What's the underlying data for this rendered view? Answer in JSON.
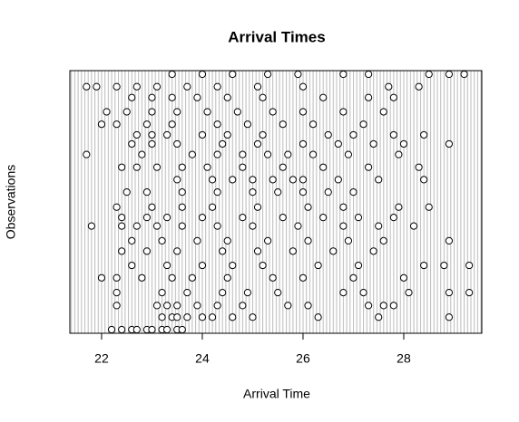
{
  "chart_data": {
    "type": "scatter",
    "title": "Arrival Times",
    "x_label": "Arrival Time",
    "y_label": "Observations",
    "xlim": [
      21.37,
      29.55
    ],
    "ylim": [
      0,
      100
    ],
    "xticks": [
      22,
      24,
      26,
      28
    ],
    "point_color": "#000000",
    "x": [
      22.2,
      22.4,
      22.6,
      22.7,
      22.9,
      23.0,
      23.2,
      23.3,
      23.5,
      23.6,
      23.2,
      23.4,
      23.5,
      23.7,
      24.0,
      24.2,
      24.6,
      25.0,
      26.3,
      27.5,
      28.9,
      22.3,
      23.1,
      23.3,
      23.5,
      23.9,
      24.3,
      24.8,
      25.7,
      26.1,
      27.3,
      27.6,
      27.8,
      22.3,
      23.2,
      23.7,
      24.4,
      24.9,
      25.5,
      26.8,
      27.2,
      28.1,
      28.9,
      29.3,
      22.0,
      22.3,
      22.8,
      23.4,
      23.8,
      24.5,
      25.4,
      26.0,
      27.0,
      28.0,
      22.6,
      23.3,
      24.0,
      24.6,
      25.2,
      26.3,
      27.1,
      28.4,
      28.8,
      29.3,
      22.4,
      22.9,
      23.5,
      24.4,
      25.1,
      25.8,
      26.6,
      27.4,
      22.6,
      23.2,
      23.9,
      24.5,
      25.3,
      26.1,
      26.9,
      27.6,
      28.9,
      21.8,
      22.4,
      22.7,
      23.1,
      23.6,
      24.3,
      25.0,
      25.9,
      26.8,
      27.5,
      28.2,
      22.4,
      22.9,
      23.3,
      24.0,
      24.8,
      25.6,
      26.4,
      27.1,
      27.8,
      22.3,
      23.0,
      23.6,
      24.2,
      25.1,
      26.1,
      26.8,
      27.9,
      28.5,
      22.5,
      22.9,
      23.6,
      24.3,
      25.0,
      25.5,
      26.0,
      26.5,
      27.0,
      23.5,
      24.2,
      24.6,
      25.0,
      25.4,
      25.8,
      26.0,
      26.7,
      27.5,
      28.4,
      22.4,
      22.7,
      23.1,
      23.6,
      24.1,
      24.8,
      25.6,
      26.4,
      27.3,
      28.3,
      21.7,
      22.8,
      23.8,
      24.3,
      24.8,
      25.3,
      25.7,
      26.2,
      26.9,
      27.9,
      22.6,
      23.0,
      23.5,
      24.4,
      25.1,
      26.0,
      26.7,
      27.4,
      28.0,
      28.9,
      22.7,
      23.0,
      23.3,
      24.0,
      24.5,
      25.2,
      26.5,
      27.0,
      27.8,
      28.4,
      22.0,
      22.3,
      22.9,
      23.4,
      24.3,
      24.9,
      25.6,
      26.2,
      27.2,
      22.1,
      22.5,
      23.0,
      23.5,
      24.1,
      24.7,
      25.4,
      26.0,
      26.8,
      27.6,
      22.6,
      23.0,
      23.4,
      23.9,
      24.5,
      25.2,
      26.4,
      27.3,
      27.8,
      21.7,
      21.9,
      22.3,
      22.7,
      23.1,
      23.7,
      24.3,
      25.1,
      26.0,
      27.7,
      28.3,
      23.4,
      24.0,
      24.6,
      25.3,
      25.9,
      26.8,
      27.3,
      28.5,
      28.9,
      29.2
    ],
    "values": [
      0.7,
      0.7,
      0.7,
      0.7,
      0.7,
      0.7,
      0.7,
      0.7,
      0.7,
      0.7,
      5.5,
      5.5,
      5.5,
      5.5,
      5.5,
      5.5,
      5.5,
      5.5,
      5.5,
      5.5,
      5.5,
      10,
      10,
      10,
      10,
      10,
      10,
      10,
      10,
      10,
      10,
      10,
      10,
      15,
      15,
      15,
      15,
      15,
      15,
      15,
      15,
      15,
      15,
      15,
      20.7,
      20.7,
      20.7,
      20.7,
      20.7,
      20.7,
      20.7,
      20.7,
      20.7,
      20.7,
      25.5,
      25.5,
      25.5,
      25.5,
      25.5,
      25.5,
      25.5,
      25.5,
      25.5,
      25.5,
      31,
      31,
      31,
      31,
      31,
      31,
      31,
      31,
      35,
      35,
      35,
      35,
      35,
      35,
      35,
      35,
      35,
      40.7,
      40.7,
      40.7,
      40.7,
      40.7,
      40.7,
      40.7,
      40.7,
      40.7,
      40.7,
      40.7,
      44,
      44,
      44,
      44,
      44,
      44,
      44,
      44,
      44,
      48,
      48,
      48,
      48,
      48,
      48,
      48,
      48,
      48,
      53.8,
      53.8,
      53.8,
      53.8,
      53.8,
      53.8,
      53.8,
      53.8,
      53.8,
      58.6,
      58.6,
      58.6,
      58.6,
      58.6,
      58.6,
      58.6,
      58.6,
      58.6,
      58.6,
      63.4,
      63.4,
      63.4,
      63.4,
      63.4,
      63.4,
      63.4,
      63.4,
      63.4,
      63.4,
      68.3,
      68.3,
      68.3,
      68.3,
      68.3,
      68.3,
      68.3,
      68.3,
      68.3,
      68.3,
      72.4,
      72.4,
      72.4,
      72.4,
      72.4,
      72.4,
      72.4,
      72.4,
      72.4,
      72.4,
      75.9,
      75.9,
      75.9,
      75.9,
      75.9,
      75.9,
      75.9,
      75.9,
      75.9,
      75.9,
      80,
      80,
      80,
      80,
      80,
      80,
      80,
      80,
      80,
      84.8,
      84.8,
      84.8,
      84.8,
      84.8,
      84.8,
      84.8,
      84.8,
      84.8,
      84.8,
      90.3,
      90.3,
      90.3,
      90.3,
      90.3,
      90.3,
      90.3,
      90.3,
      90.3,
      94.5,
      94.5,
      94.5,
      94.5,
      94.5,
      94.5,
      94.5,
      94.5,
      94.5,
      94.5,
      94.5,
      99.3,
      99.3,
      99.3,
      99.3,
      99.3,
      99.3,
      99.3,
      99.3,
      99.3,
      99.3
    ]
  }
}
